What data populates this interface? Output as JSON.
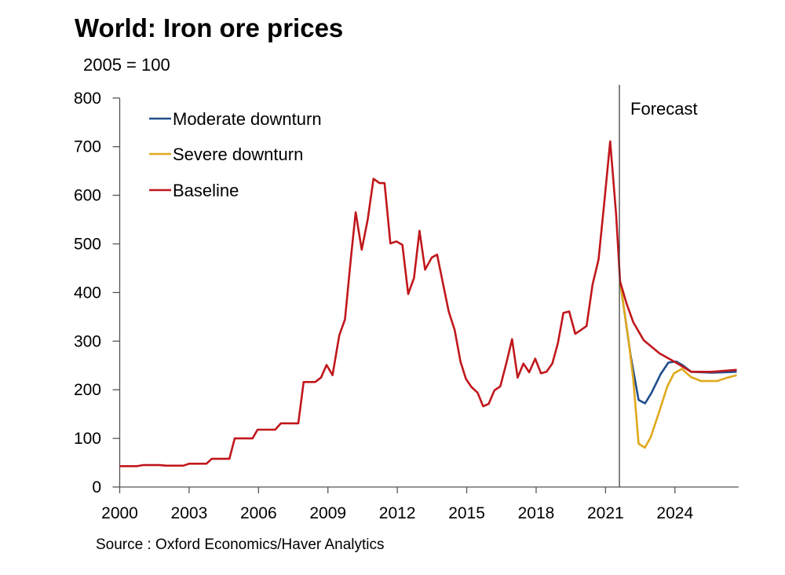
{
  "chart_data": {
    "type": "line",
    "title": "World: Iron ore prices",
    "subtitle": "2005 = 100",
    "source": "Source : Oxford Economics/Haver Analytics",
    "xlabel": "",
    "ylabel": "",
    "xlim": [
      2000,
      2026.75
    ],
    "ylim": [
      0,
      800
    ],
    "x_ticks": [
      2000,
      2003,
      2006,
      2009,
      2012,
      2015,
      2018,
      2021,
      2024
    ],
    "y_ticks": [
      0,
      100,
      200,
      300,
      400,
      500,
      600,
      700,
      800
    ],
    "grid": false,
    "legend_placement": "top-left",
    "forecast": {
      "label": "Forecast",
      "x": 2021.6
    },
    "series": [
      {
        "name": "Moderate downturn",
        "color": "#1f4e8c",
        "points": [
          [
            2021.63,
            423
          ],
          [
            2022.09,
            269
          ],
          [
            2022.43,
            179
          ],
          [
            2022.71,
            172
          ],
          [
            2022.99,
            194
          ],
          [
            2023.38,
            232
          ],
          [
            2023.72,
            256
          ],
          [
            2024.06,
            258
          ],
          [
            2024.35,
            250
          ],
          [
            2024.7,
            237
          ],
          [
            2025.6,
            235
          ],
          [
            2026.67,
            237
          ]
        ]
      },
      {
        "name": "Severe downturn",
        "color": "#e0a91c",
        "points": [
          [
            2021.63,
            423
          ],
          [
            2021.98,
            307
          ],
          [
            2022.2,
            221
          ],
          [
            2022.43,
            89
          ],
          [
            2022.7,
            81
          ],
          [
            2022.95,
            102
          ],
          [
            2023.33,
            156
          ],
          [
            2023.67,
            207
          ],
          [
            2023.96,
            234
          ],
          [
            2024.3,
            243
          ],
          [
            2024.7,
            226
          ],
          [
            2025.14,
            218
          ],
          [
            2025.82,
            218
          ],
          [
            2026.27,
            225
          ],
          [
            2026.67,
            230
          ]
        ]
      },
      {
        "name": "Baseline",
        "color": "#c0171c",
        "points": [
          [
            2000,
            43
          ],
          [
            2000.75,
            43
          ],
          [
            2001,
            45
          ],
          [
            2001.75,
            45
          ],
          [
            2002,
            44
          ],
          [
            2002.75,
            44
          ],
          [
            2003,
            48
          ],
          [
            2003.75,
            48
          ],
          [
            2003.98,
            58
          ],
          [
            2004.74,
            58
          ],
          [
            2004.97,
            100
          ],
          [
            2005.74,
            100
          ],
          [
            2005.96,
            118
          ],
          [
            2006.72,
            118
          ],
          [
            2006.97,
            131
          ],
          [
            2007.72,
            131
          ],
          [
            2007.95,
            216
          ],
          [
            2008.45,
            216
          ],
          [
            2008.7,
            225
          ],
          [
            2008.94,
            251
          ],
          [
            2009.2,
            230
          ],
          [
            2009.49,
            312
          ],
          [
            2009.74,
            345
          ],
          [
            2010.0,
            474
          ],
          [
            2010.2,
            565
          ],
          [
            2010.46,
            488
          ],
          [
            2010.72,
            550
          ],
          [
            2010.97,
            634
          ],
          [
            2011.23,
            625
          ],
          [
            2011.45,
            625
          ],
          [
            2011.7,
            501
          ],
          [
            2011.96,
            505
          ],
          [
            2012.22,
            498
          ],
          [
            2012.47,
            397
          ],
          [
            2012.72,
            430
          ],
          [
            2012.96,
            527
          ],
          [
            2013.2,
            447
          ],
          [
            2013.49,
            472
          ],
          [
            2013.72,
            478
          ],
          [
            2014.22,
            361
          ],
          [
            2014.48,
            323
          ],
          [
            2014.73,
            258
          ],
          [
            2014.96,
            223
          ],
          [
            2015.2,
            206
          ],
          [
            2015.47,
            194
          ],
          [
            2015.71,
            166
          ],
          [
            2015.95,
            171
          ],
          [
            2016.2,
            199
          ],
          [
            2016.45,
            207
          ],
          [
            2016.71,
            254
          ],
          [
            2016.96,
            304
          ],
          [
            2017.2,
            225
          ],
          [
            2017.45,
            254
          ],
          [
            2017.7,
            236
          ],
          [
            2017.96,
            264
          ],
          [
            2018.21,
            234
          ],
          [
            2018.45,
            237
          ],
          [
            2018.7,
            254
          ],
          [
            2018.94,
            296
          ],
          [
            2019.18,
            358
          ],
          [
            2019.43,
            361
          ],
          [
            2019.69,
            315
          ],
          [
            2019.94,
            323
          ],
          [
            2020.18,
            331
          ],
          [
            2020.44,
            417
          ],
          [
            2020.7,
            468
          ],
          [
            2020.95,
            587
          ],
          [
            2021.2,
            711
          ],
          [
            2021.46,
            560
          ],
          [
            2021.63,
            423
          ],
          [
            2021.91,
            377
          ],
          [
            2022.2,
            339
          ],
          [
            2022.65,
            302
          ],
          [
            2023.33,
            275
          ],
          [
            2024.0,
            257
          ],
          [
            2024.7,
            237
          ],
          [
            2025.6,
            237
          ],
          [
            2026.67,
            241
          ]
        ]
      }
    ]
  }
}
